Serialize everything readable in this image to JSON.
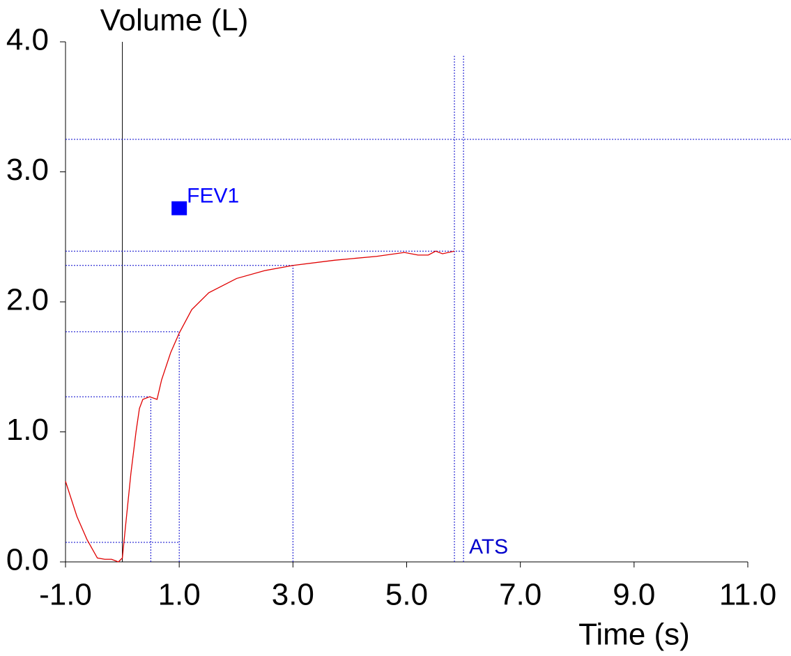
{
  "chart_data": {
    "type": "line",
    "y_label": "Volume (L)",
    "x_label": "Time (s)",
    "xlim": [
      -1.0,
      11.0
    ],
    "ylim": [
      0.0,
      4.0
    ],
    "xticks": [
      {
        "value": -1.0,
        "label": "-1.0"
      },
      {
        "value": 1.0,
        "label": "1.0"
      },
      {
        "value": 3.0,
        "label": "3.0"
      },
      {
        "value": 5.0,
        "label": "5.0"
      },
      {
        "value": 7.0,
        "label": "7.0"
      },
      {
        "value": 9.0,
        "label": "9.0"
      },
      {
        "value": 11.0,
        "label": "11.0"
      }
    ],
    "yticks": [
      {
        "value": 0.0,
        "label": "0.0"
      },
      {
        "value": 1.0,
        "label": "1.0"
      },
      {
        "value": 2.0,
        "label": "2.0"
      },
      {
        "value": 3.0,
        "label": "3.0"
      },
      {
        "value": 4.0,
        "label": "4.0"
      }
    ],
    "series": [
      {
        "color": "#e00000",
        "x": [
          -1.0,
          -0.8,
          -0.62,
          -0.44,
          -0.31,
          -0.19,
          -0.07,
          0.0,
          0.05,
          0.15,
          0.24,
          0.3,
          0.36,
          0.48,
          0.61,
          0.69,
          0.85,
          1.0,
          1.22,
          1.52,
          2.01,
          2.5,
          3.0,
          3.73,
          4.47,
          4.96,
          5.2,
          5.38,
          5.51,
          5.63,
          5.84
        ],
        "values": [
          0.62,
          0.35,
          0.17,
          0.03,
          0.02,
          0.02,
          0.0,
          0.03,
          0.25,
          0.68,
          1.0,
          1.18,
          1.25,
          1.27,
          1.25,
          1.4,
          1.61,
          1.76,
          1.94,
          2.07,
          2.18,
          2.24,
          2.28,
          2.32,
          2.35,
          2.38,
          2.36,
          2.36,
          2.39,
          2.37,
          2.39
        ]
      }
    ],
    "reference_lines": [
      {
        "x": 0.0,
        "y": [
          0.0,
          4.0
        ],
        "color": "#000000"
      },
      {
        "y": 3.25,
        "x": [
          -1.0,
          11.76
        ],
        "color": "#0000cc"
      },
      {
        "y": 2.39,
        "x": [
          -1.0,
          6.0
        ],
        "color": "#0000cc"
      },
      {
        "y": 2.28,
        "x": [
          -1.0,
          3.0
        ],
        "color": "#0000cc"
      },
      {
        "y": 1.77,
        "x": [
          -1.0,
          1.0
        ],
        "color": "#0000cc"
      },
      {
        "y": 1.27,
        "x": [
          -1.0,
          0.5
        ],
        "color": "#0000cc"
      },
      {
        "y": 0.15,
        "x": [
          -1.0,
          1.0
        ],
        "color": "#0000cc"
      },
      {
        "x": 0.5,
        "y": [
          0.0,
          1.27
        ],
        "color": "#0000cc"
      },
      {
        "x": 1.0,
        "y": [
          0.0,
          1.77
        ],
        "color": "#0000cc"
      },
      {
        "x": 3.0,
        "y": [
          0.0,
          2.28
        ],
        "color": "#0000cc"
      },
      {
        "x": 5.84,
        "y": [
          0.0,
          3.9
        ],
        "color": "#0000cc"
      },
      {
        "x": 6.0,
        "y": [
          0.0,
          3.9
        ],
        "color": "#0000cc",
        "label": "ATS"
      }
    ],
    "annotations": [
      {
        "text": "FEV1",
        "x": 1.0,
        "y": 2.72,
        "color": "#0000ff"
      }
    ]
  }
}
